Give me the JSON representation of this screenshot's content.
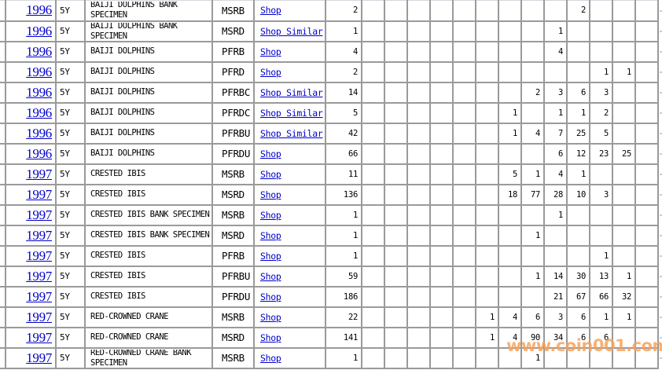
{
  "watermark": {
    "text": "www.coin001.com",
    "color": "#f7a156"
  },
  "colors": {
    "grid_border": "#9a9a9a",
    "link_blue": "#0000cc",
    "text": "#000000",
    "row_continuation_dash": "#c8cbe3",
    "watermark_orange": "#f7a156"
  },
  "table": {
    "grade_column_count": 13,
    "rows": [
      {
        "year": "1996",
        "denomination": "5Y",
        "description": "BAIJI DOLPHINS BANK SPECIMEN",
        "code": "MSRB",
        "shop_label": "Shop",
        "total": "2",
        "grade_counts": [
          "",
          "",
          "",
          "",
          "",
          "",
          "",
          "",
          "",
          "2",
          "",
          "",
          ""
        ]
      },
      {
        "year": "1996",
        "denomination": "5Y",
        "description": "BAIJI DOLPHINS BANK SPECIMEN",
        "code": "MSRD",
        "shop_label": "Shop Similar",
        "total": "1",
        "grade_counts": [
          "",
          "",
          "",
          "",
          "",
          "",
          "",
          "",
          "1",
          "",
          "",
          "",
          ""
        ]
      },
      {
        "year": "1996",
        "denomination": "5Y",
        "description": "BAIJI DOLPHINS",
        "code": "PFRB",
        "shop_label": "Shop",
        "total": "4",
        "grade_counts": [
          "",
          "",
          "",
          "",
          "",
          "",
          "",
          "",
          "4",
          "",
          "",
          "",
          ""
        ]
      },
      {
        "year": "1996",
        "denomination": "5Y",
        "description": "BAIJI DOLPHINS",
        "code": "PFRD",
        "shop_label": "Shop",
        "total": "2",
        "grade_counts": [
          "",
          "",
          "",
          "",
          "",
          "",
          "",
          "",
          "",
          "",
          "1",
          "1",
          ""
        ]
      },
      {
        "year": "1996",
        "denomination": "5Y",
        "description": "BAIJI DOLPHINS",
        "code": "PFRBC",
        "shop_label": "Shop Similar",
        "total": "14",
        "grade_counts": [
          "",
          "",
          "",
          "",
          "",
          "",
          "",
          "2",
          "3",
          "6",
          "3",
          "",
          ""
        ]
      },
      {
        "year": "1996",
        "denomination": "5Y",
        "description": "BAIJI DOLPHINS",
        "code": "PFRDC",
        "shop_label": "Shop Similar",
        "total": "5",
        "grade_counts": [
          "",
          "",
          "",
          "",
          "",
          "",
          "1",
          "",
          "1",
          "1",
          "2",
          "",
          ""
        ]
      },
      {
        "year": "1996",
        "denomination": "5Y",
        "description": "BAIJI DOLPHINS",
        "code": "PFRBU",
        "shop_label": "Shop Similar",
        "total": "42",
        "grade_counts": [
          "",
          "",
          "",
          "",
          "",
          "",
          "1",
          "4",
          "7",
          "25",
          "5",
          "",
          ""
        ]
      },
      {
        "year": "1996",
        "denomination": "5Y",
        "description": "BAIJI DOLPHINS",
        "code": "PFRDU",
        "shop_label": "Shop",
        "total": "66",
        "grade_counts": [
          "",
          "",
          "",
          "",
          "",
          "",
          "",
          "",
          "6",
          "12",
          "23",
          "25",
          ""
        ]
      },
      {
        "year": "1997",
        "denomination": "5Y",
        "description": "CRESTED IBIS",
        "code": "MSRB",
        "shop_label": "Shop",
        "total": "11",
        "grade_counts": [
          "",
          "",
          "",
          "",
          "",
          "",
          "5",
          "1",
          "4",
          "1",
          "",
          "",
          ""
        ]
      },
      {
        "year": "1997",
        "denomination": "5Y",
        "description": "CRESTED IBIS",
        "code": "MSRD",
        "shop_label": "Shop",
        "total": "136",
        "grade_counts": [
          "",
          "",
          "",
          "",
          "",
          "",
          "18",
          "77",
          "28",
          "10",
          "3",
          "",
          ""
        ]
      },
      {
        "year": "1997",
        "denomination": "5Y",
        "description": "CRESTED IBIS BANK SPECIMEN",
        "code": "MSRB",
        "shop_label": "Shop",
        "total": "1",
        "grade_counts": [
          "",
          "",
          "",
          "",
          "",
          "",
          "",
          "",
          "1",
          "",
          "",
          "",
          ""
        ]
      },
      {
        "year": "1997",
        "denomination": "5Y",
        "description": "CRESTED IBIS BANK SPECIMEN",
        "code": "MSRD",
        "shop_label": "Shop",
        "total": "1",
        "grade_counts": [
          "",
          "",
          "",
          "",
          "",
          "",
          "",
          "1",
          "",
          "",
          "",
          "",
          ""
        ]
      },
      {
        "year": "1997",
        "denomination": "5Y",
        "description": "CRESTED IBIS",
        "code": "PFRB",
        "shop_label": "Shop",
        "total": "1",
        "grade_counts": [
          "",
          "",
          "",
          "",
          "",
          "",
          "",
          "",
          "",
          "",
          "1",
          "",
          ""
        ]
      },
      {
        "year": "1997",
        "denomination": "5Y",
        "description": "CRESTED IBIS",
        "code": "PFRBU",
        "shop_label": "Shop",
        "total": "59",
        "grade_counts": [
          "",
          "",
          "",
          "",
          "",
          "",
          "",
          "1",
          "14",
          "30",
          "13",
          "1",
          ""
        ]
      },
      {
        "year": "1997",
        "denomination": "5Y",
        "description": "CRESTED IBIS",
        "code": "PFRDU",
        "shop_label": "Shop",
        "total": "186",
        "grade_counts": [
          "",
          "",
          "",
          "",
          "",
          "",
          "",
          "",
          "21",
          "67",
          "66",
          "32",
          ""
        ]
      },
      {
        "year": "1997",
        "denomination": "5Y",
        "description": "RED-CROWNED CRANE",
        "code": "MSRB",
        "shop_label": "Shop",
        "total": "22",
        "grade_counts": [
          "",
          "",
          "",
          "",
          "",
          "1",
          "4",
          "6",
          "3",
          "6",
          "1",
          "1",
          ""
        ]
      },
      {
        "year": "1997",
        "denomination": "5Y",
        "description": "RED-CROWNED CRANE",
        "code": "MSRD",
        "shop_label": "Shop",
        "total": "141",
        "grade_counts": [
          "",
          "",
          "",
          "",
          "",
          "1",
          "4",
          "90",
          "34",
          "6",
          "6",
          "",
          ""
        ]
      },
      {
        "year": "1997",
        "denomination": "5Y",
        "description": "RED-CROWNED CRANE BANK SPECIMEN",
        "code": "MSRB",
        "shop_label": "Shop",
        "total": "1",
        "grade_counts": [
          "",
          "",
          "",
          "",
          "",
          "",
          "",
          "1",
          "",
          "",
          "",
          "",
          ""
        ]
      }
    ]
  }
}
